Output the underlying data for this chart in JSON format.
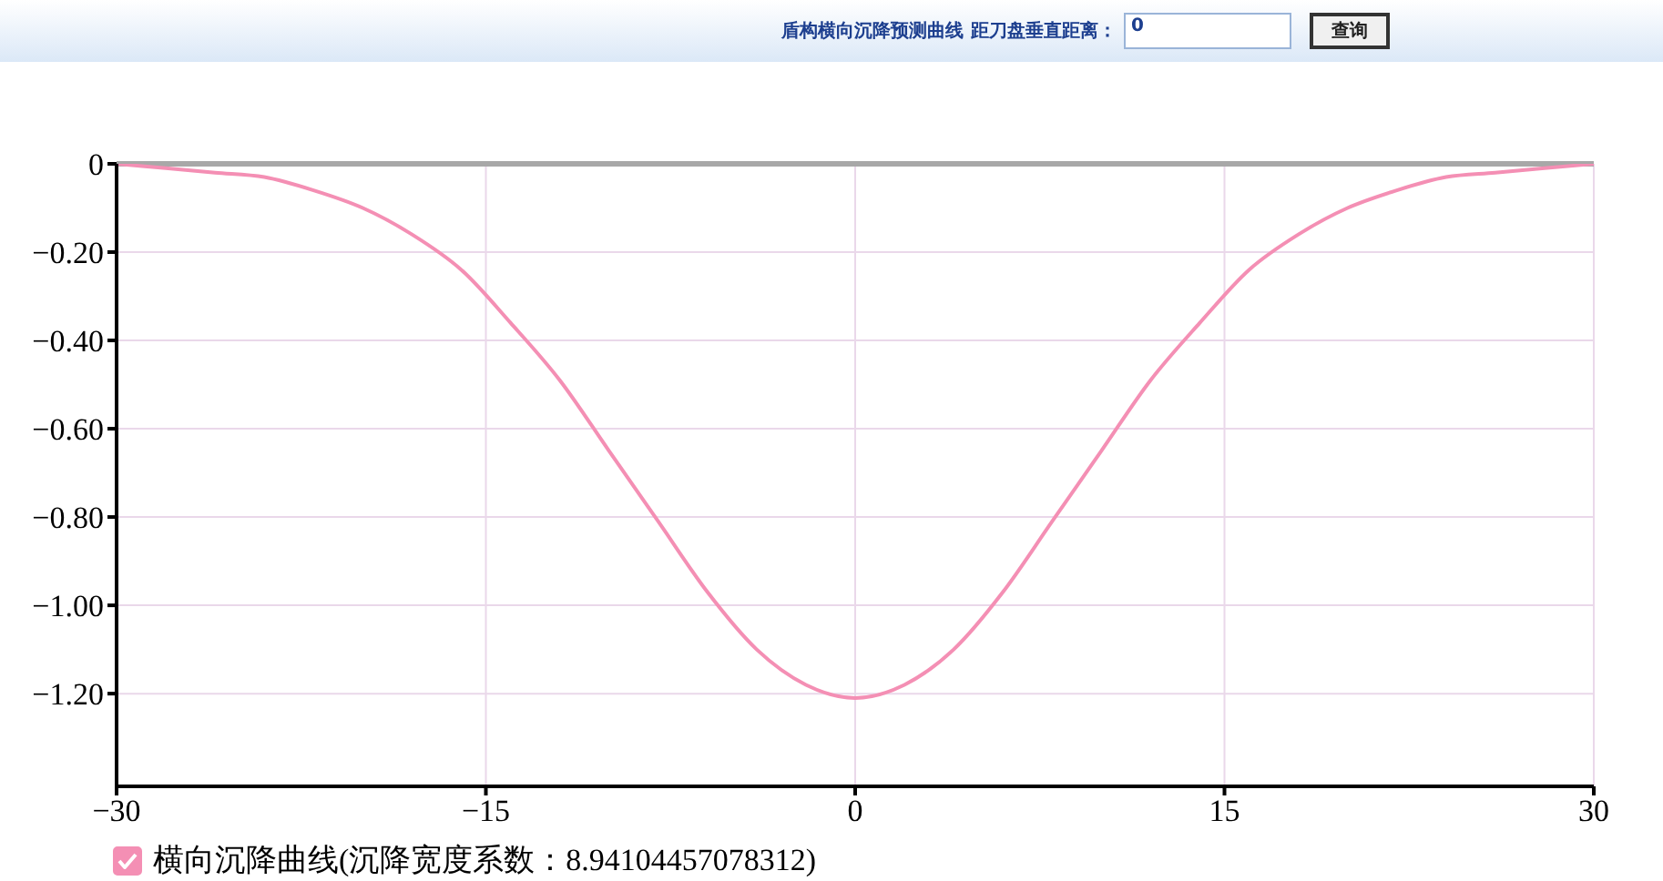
{
  "chart_data": {
    "type": "line",
    "title": "盾构横向沉降预测曲线",
    "annotations": [
      "距刀盘垂直距离：",
      "0",
      "查询"
    ],
    "x": [
      -30,
      -28,
      -26,
      -24,
      -22,
      -20,
      -18,
      -16,
      -14,
      -12,
      -10,
      -8,
      -6,
      -4,
      -2,
      0,
      2,
      4,
      6,
      8,
      10,
      12,
      14,
      16,
      18,
      20,
      22,
      24,
      26,
      28,
      30
    ],
    "series": [
      {
        "name": "横向沉降曲线(沉降宽度系数：8.94104457078312)",
        "color": "#f48fb4",
        "values": [
          0,
          -0.01,
          -0.02,
          -0.03,
          -0.06,
          -0.1,
          -0.16,
          -0.24,
          -0.36,
          -0.49,
          -0.65,
          -0.81,
          -0.97,
          -1.1,
          -1.18,
          -1.21,
          -1.18,
          -1.1,
          -0.97,
          -0.81,
          -0.65,
          -0.49,
          -0.36,
          -0.24,
          -0.16,
          -0.1,
          -0.06,
          -0.03,
          -0.02,
          -0.01,
          0
        ]
      }
    ],
    "xlim": [
      -30,
      30
    ],
    "xticks": [
      {
        "value": -30,
        "label": "−30"
      },
      {
        "value": -15,
        "label": "−15"
      },
      0,
      15,
      {
        "value": 30,
        "label": "30"
      }
    ],
    "ylim": [
      -1.41,
      0
    ],
    "yticks": [
      0,
      {
        "value": -0.2,
        "label": "−0.20"
      },
      {
        "value": -0.4,
        "label": "−0.40"
      },
      {
        "value": -0.6,
        "label": "−0.60"
      },
      {
        "value": -0.8,
        "label": "−0.80"
      },
      {
        "value": -1.0,
        "label": "−1.00"
      },
      {
        "value": -1.2,
        "label": "−1.20"
      }
    ],
    "ref_lines": [
      {
        "axis": "y",
        "value": 0,
        "color": "#a8a8a8"
      }
    ],
    "grid": true,
    "legend": "bottom left",
    "marker": "none",
    "line_style": "solid"
  }
}
